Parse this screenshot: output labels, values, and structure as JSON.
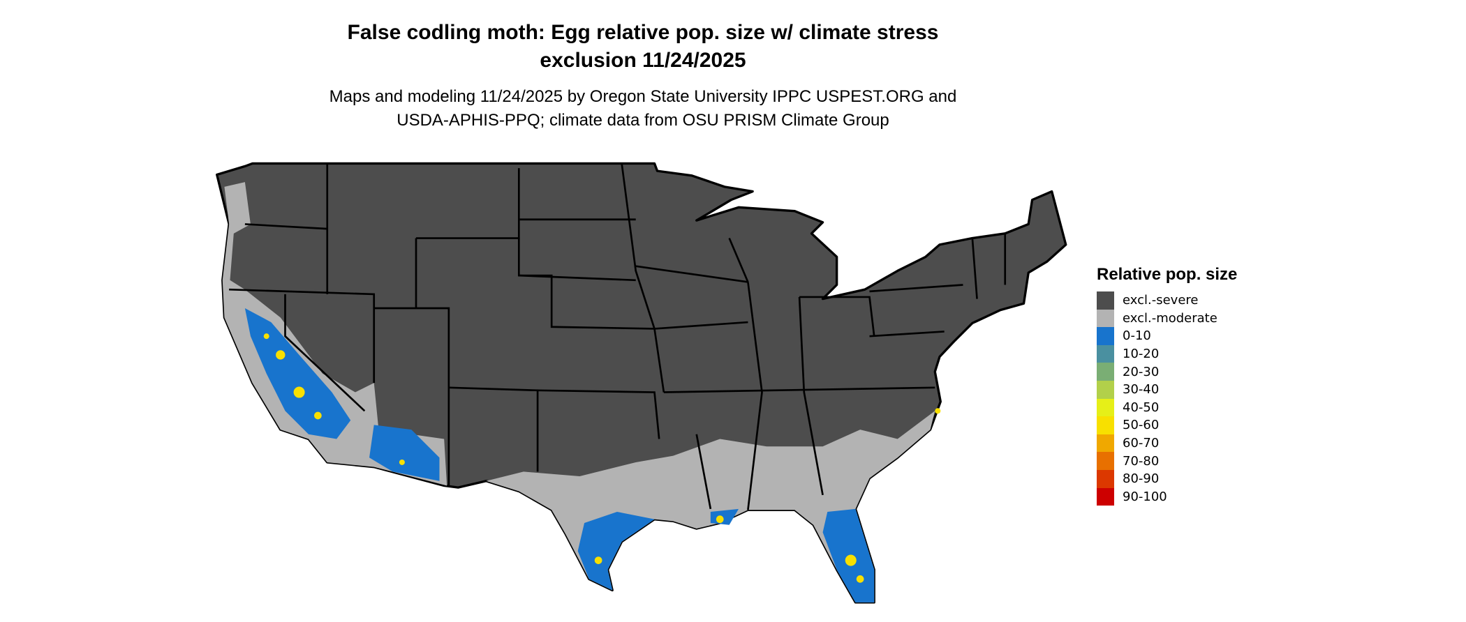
{
  "title": {
    "line1": "False codling moth: Egg relative pop. size w/ climate stress",
    "line2": "exclusion 11/24/2025"
  },
  "subtitle": {
    "line1": "Maps and modeling 11/24/2025 by Oregon State University IPPC USPEST.ORG and",
    "line2": "USDA-APHIS-PPQ; climate data from OSU PRISM Climate Group"
  },
  "legend": {
    "title": "Relative pop. size",
    "items": [
      {
        "label": "excl.-severe",
        "color": "#4d4d4d"
      },
      {
        "label": "excl.-moderate",
        "color": "#b3b3b3"
      },
      {
        "label": "0-10",
        "color": "#1874cd"
      },
      {
        "label": "10-20",
        "color": "#4a90a0"
      },
      {
        "label": "20-30",
        "color": "#7aae74"
      },
      {
        "label": "30-40",
        "color": "#b2d04a"
      },
      {
        "label": "40-50",
        "color": "#e6ef18"
      },
      {
        "label": "50-60",
        "color": "#f8e000"
      },
      {
        "label": "60-70",
        "color": "#f0a800"
      },
      {
        "label": "70-80",
        "color": "#e87000"
      },
      {
        "label": "80-90",
        "color": "#dc3800"
      },
      {
        "label": "90-100",
        "color": "#cd0000"
      }
    ]
  }
}
